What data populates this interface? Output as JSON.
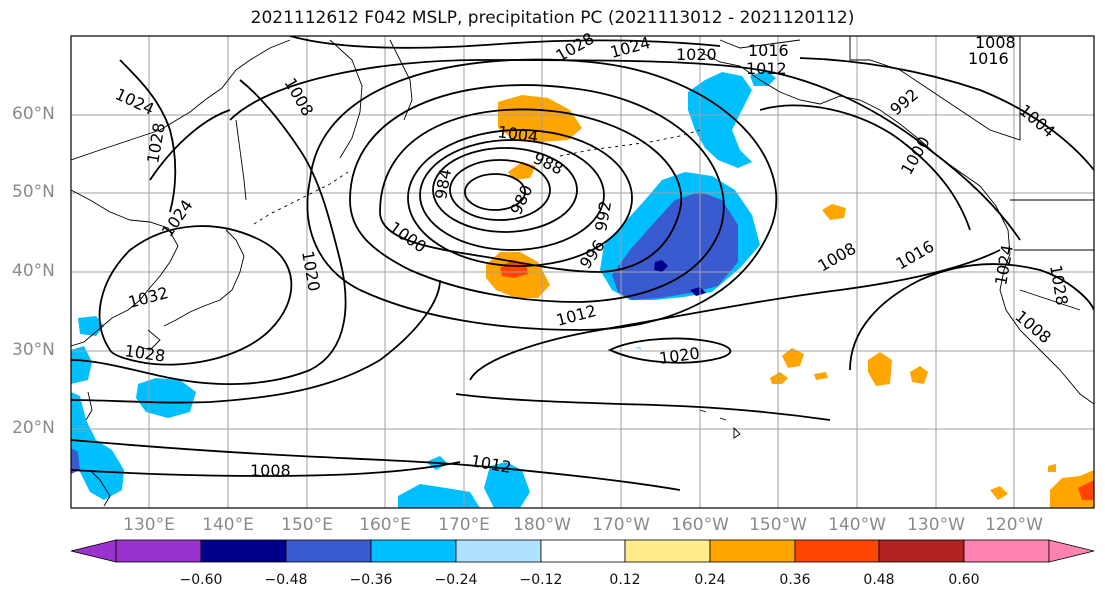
{
  "title": "2021112612 F042 MSLP, precipitation PC (2021113012 - 2021120112)",
  "lat_labels": [
    "60°N",
    "50°N",
    "40°N",
    "30°N",
    "20°N"
  ],
  "lon_labels": [
    "130°E",
    "140°E",
    "150°E",
    "160°E",
    "170°E",
    "180°W",
    "170°W",
    "160°W",
    "150°W",
    "140°W",
    "130°W",
    "120°W"
  ],
  "isobar_labels": [
    "1028",
    "1024",
    "1020",
    "1016",
    "1012",
    "1008",
    "1016",
    "1008",
    "1024",
    "1028",
    "1024",
    "1032",
    "1028",
    "1020",
    "1004",
    "988",
    "984",
    "980",
    "992",
    "996",
    "1000",
    "1012",
    "1020",
    "1008",
    "1012",
    "1008",
    "1016",
    "1024",
    "1028",
    "1004",
    "1000",
    "992",
    "1008"
  ],
  "colorbar": {
    "ticks": [
      "−0.60",
      "−0.48",
      "−0.36",
      "−0.24",
      "−0.12",
      "0.12",
      "0.24",
      "0.36",
      "0.48",
      "0.60"
    ],
    "colors": [
      "#9a32cd",
      "#00008b",
      "#3a5bd0",
      "#00bfff",
      "#b0e2ff",
      "#ffffff",
      "#ffec8b",
      "#ffa500",
      "#ff4500",
      "#b22222",
      "#ff83b0"
    ]
  },
  "colors": {
    "coast": "#000000",
    "grid": "#a0a0a0",
    "isobar": "#000000"
  }
}
